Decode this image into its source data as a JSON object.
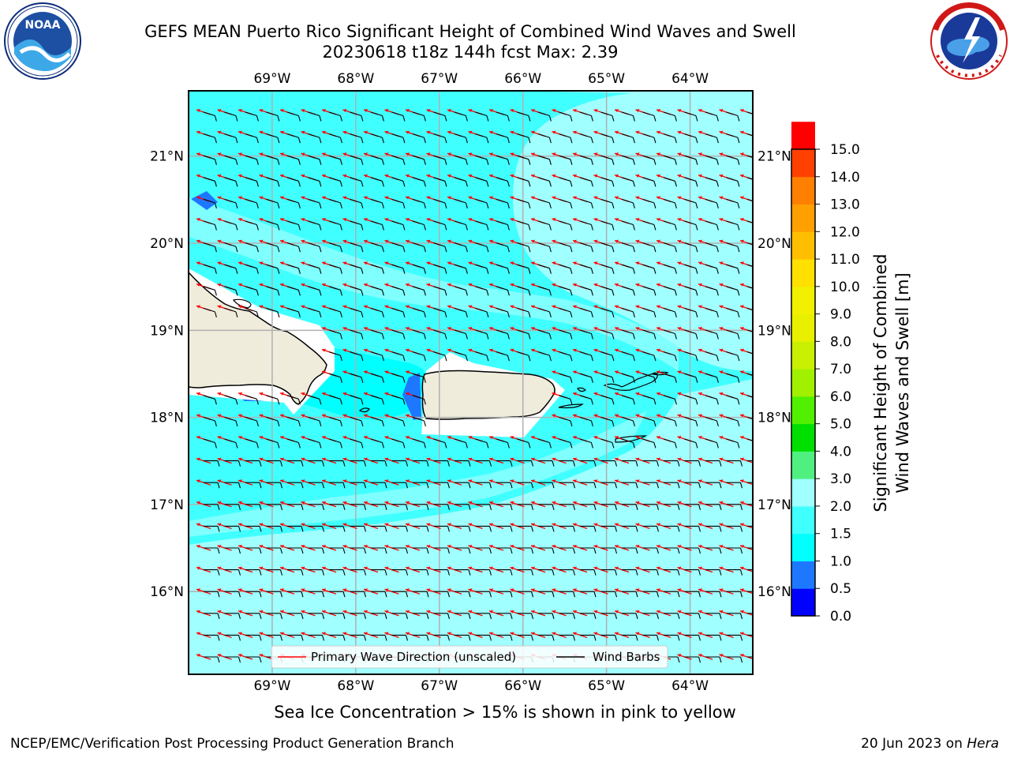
{
  "title_line1": "GEFS MEAN Puerto Rico Significant Height of Combined Wind Waves and Swell",
  "title_line2": "20230618 t18z 144h fcst   Max: 2.39",
  "noaa_logo": {
    "text": "NOAA",
    "ring_text": "NATIONAL OCEANIC AND ATMOSPHERIC ADMINISTRATION · U.S. DEPARTMENT OF COMMERCE"
  },
  "nws_logo": {
    "ring_text": "NATIONAL WEATHER SERVICE"
  },
  "map": {
    "lon_labels": [
      "69°W",
      "68°W",
      "67°W",
      "66°W",
      "65°W",
      "64°W"
    ],
    "lon_values": [
      -69,
      -68,
      -67,
      -66,
      -65,
      -64
    ],
    "lat_labels": [
      "21°N",
      "20°N",
      "19°N",
      "18°N",
      "17°N",
      "16°N"
    ],
    "lat_values": [
      21,
      20,
      19,
      18,
      17,
      16
    ],
    "lon_range": [
      -70.0,
      -63.25
    ],
    "lat_range": [
      15.05,
      21.75
    ],
    "ocean_color": "#80ffff",
    "land_color": "#efecdc"
  },
  "legend": {
    "wave_label": "Primary Wave Direction (unscaled)",
    "barb_label": "Wind Barbs",
    "wave_color": "#ff0000",
    "barb_color": "#000000"
  },
  "colorbar": {
    "title_line1": "Significant Height of Combined",
    "title_line2": "Wind Waves and Swell [m]",
    "tick_labels": [
      "15.0",
      "14.0",
      "13.0",
      "12.0",
      "11.0",
      "10.0",
      "9.0",
      "8.0",
      "7.0",
      "6.0",
      "5.0",
      "4.0",
      "3.0",
      "2.0",
      "1.5",
      "1.0",
      "0.5",
      "0.0"
    ],
    "colors_bottom_to_top": [
      "#0000ff",
      "#1e78ff",
      "#00ffff",
      "#40ffff",
      "#a0ffff",
      "#50f080",
      "#00e000",
      "#50f000",
      "#a0f000",
      "#c8f000",
      "#e8f000",
      "#f0f000",
      "#ffe000",
      "#ffbf00",
      "#ffa000",
      "#ff8000",
      "#ff4000",
      "#ff0000"
    ]
  },
  "sea_ice_note": "Sea Ice Concentration > 15% is shown in pink to yellow",
  "footer_left": "NCEP/EMC/Verification Post Processing Product Generation Branch",
  "footer_date": "20 Jun 2023 on",
  "footer_machine": "Hera"
}
